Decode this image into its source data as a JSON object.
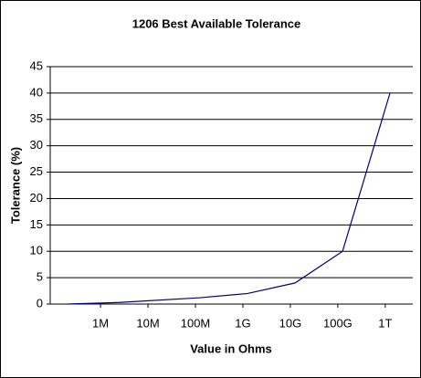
{
  "chart_data": {
    "type": "line",
    "title": "1206 Best Available Tolerance",
    "x_label": "Value in Ohms",
    "y_label": "Tolerance (%)",
    "x": [
      5.3,
      6.4,
      8.1,
      9.1,
      10.1,
      11.1,
      12.1
    ],
    "series": [
      {
        "name": "Tolerance",
        "color": "#000080",
        "values": [
          0,
          0.3,
          1.2,
          2,
          4,
          10,
          40
        ]
      }
    ],
    "xlim": [
      4.94,
      12.58
    ],
    "xticks": [
      {
        "value": 6,
        "label": "1M"
      },
      {
        "value": 7,
        "label": "10M"
      },
      {
        "value": 8,
        "label": "100M"
      },
      {
        "value": 9,
        "label": "1G"
      },
      {
        "value": 10,
        "label": "10G"
      },
      {
        "value": 11,
        "label": "100G"
      },
      {
        "value": 12,
        "label": "1T"
      }
    ],
    "ylim": [
      0,
      45
    ],
    "yticks": [
      0,
      5,
      10,
      15,
      20,
      25,
      30,
      35,
      40,
      45
    ],
    "grid": true,
    "legend": false
  }
}
